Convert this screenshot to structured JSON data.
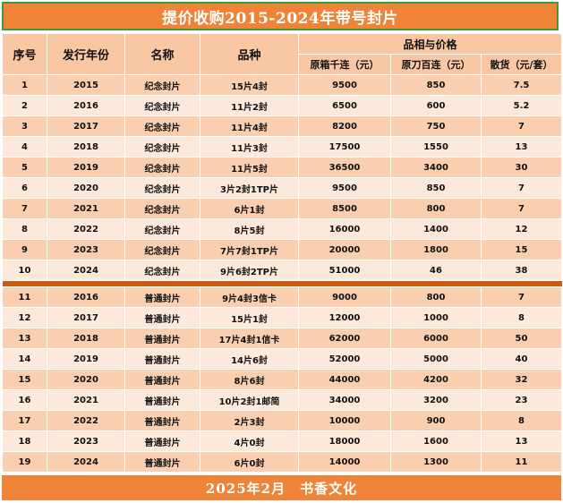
{
  "title": "提价收购2015-2024年带号封片",
  "headers": {
    "index": "序号",
    "year": "发行年份",
    "name": "名称",
    "variety": "品种",
    "group": "品相与价格",
    "col_a": "原箱千连（元）",
    "col_b": "原刀百连（元）",
    "col_c": "散货（元/套）"
  },
  "rows_commemorative": [
    [
      "1",
      "2015",
      "纪念封片",
      "15片4封",
      "9500",
      "850",
      "7.5"
    ],
    [
      "2",
      "2016",
      "纪念封片",
      "11片2封",
      "6500",
      "600",
      "5.2"
    ],
    [
      "3",
      "2017",
      "纪念封片",
      "11片4封",
      "8200",
      "750",
      "7"
    ],
    [
      "4",
      "2018",
      "纪念封片",
      "11片3封",
      "17500",
      "1550",
      "13"
    ],
    [
      "5",
      "2019",
      "纪念封片",
      "11片5封",
      "36500",
      "3400",
      "30"
    ],
    [
      "6",
      "2020",
      "纪念封片",
      "3片2封1TP片",
      "9500",
      "850",
      "7"
    ],
    [
      "7",
      "2021",
      "纪念封片",
      "6片1封",
      "8500",
      "800",
      "7"
    ],
    [
      "8",
      "2022",
      "纪念封片",
      "8片5封",
      "16000",
      "1400",
      "12"
    ],
    [
      "9",
      "2023",
      "纪念封片",
      "7片7封1TP片",
      "20000",
      "1800",
      "15"
    ],
    [
      "10",
      "2024",
      "纪念封片",
      "9片6封2TP片",
      "51000",
      "46",
      "38"
    ]
  ],
  "rows_ordinary": [
    [
      "11",
      "2016",
      "普通封片",
      "9片4封3信卡",
      "9000",
      "800",
      "7"
    ],
    [
      "12",
      "2017",
      "普通封片",
      "15片1封",
      "12000",
      "1000",
      "8"
    ],
    [
      "13",
      "2018",
      "普通封片",
      "17片4封1信卡",
      "62000",
      "6000",
      "50"
    ],
    [
      "14",
      "2019",
      "普通封片",
      "14片6封",
      "52000",
      "5000",
      "40"
    ],
    [
      "15",
      "2020",
      "普通封片",
      "8片6封",
      "44000",
      "4200",
      "32"
    ],
    [
      "16",
      "2021",
      "普通封片",
      "10片2封1邮简",
      "34000",
      "3200",
      "23"
    ],
    [
      "17",
      "2022",
      "普通封片",
      "2片3封",
      "10000",
      "900",
      "8"
    ],
    [
      "18",
      "2023",
      "普通封片",
      "4片0封",
      "18000",
      "1600",
      "13"
    ],
    [
      "19",
      "2024",
      "普通封片",
      "6片0封",
      "14000",
      "1300",
      "11"
    ]
  ],
  "footer": "2025年2月　书香文化",
  "colors": {
    "title_bg": "#ef8338",
    "title_border": "#3f9c3a",
    "header_bg": "#f9c7a3",
    "row_odd": "#f9cfb0",
    "row_even": "#fde9dc",
    "separator": "#c65d12"
  }
}
